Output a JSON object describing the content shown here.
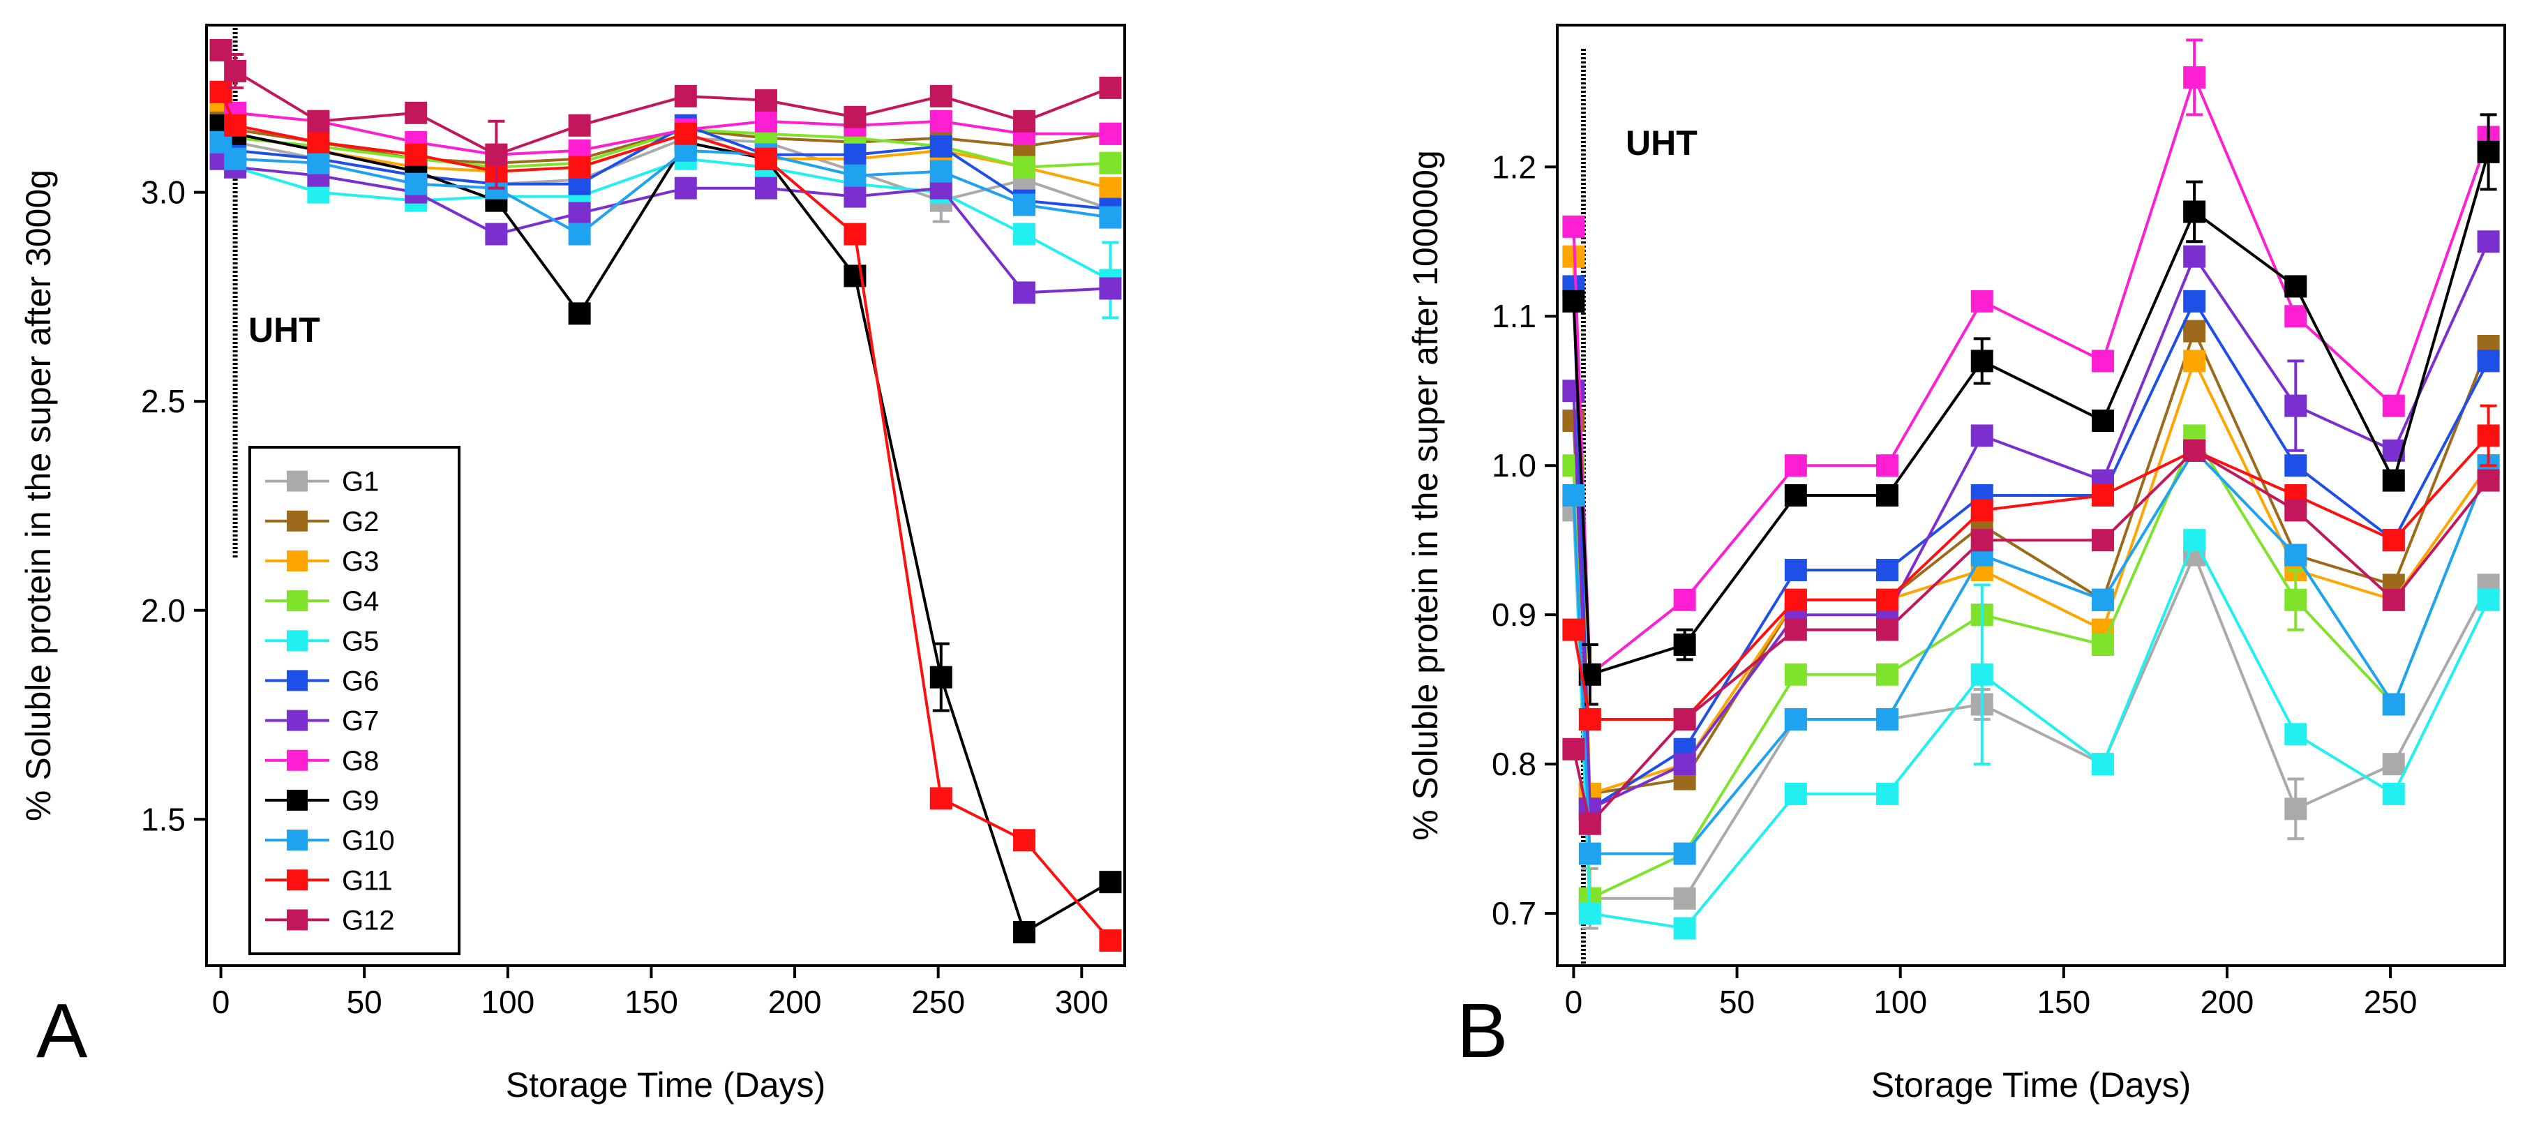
{
  "chart_data": [
    {
      "type": "line",
      "panel": "A",
      "title": "",
      "xlabel": "Storage Time (Days)",
      "ylabel": "% Soluble protein in the super after 3000g",
      "xlim": [
        -5,
        315
      ],
      "ylim": [
        1.15,
        3.4
      ],
      "xticks": [
        0,
        50,
        100,
        150,
        200,
        250,
        300
      ],
      "yticks": [
        1.5,
        2.0,
        2.5,
        3.0
      ],
      "annotation": "UHT",
      "uht_day": 5,
      "grid": false,
      "legend_position": "lower-left",
      "x": [
        0,
        5,
        34,
        68,
        96,
        125,
        162,
        190,
        221,
        251,
        280,
        310
      ],
      "series": [
        {
          "name": "G1",
          "color": "#aaaaaa",
          "values": [
            3.18,
            3.12,
            3.08,
            3.04,
            3.02,
            3.03,
            3.13,
            3.12,
            3.05,
            2.98,
            3.03,
            2.96
          ],
          "errors": [
            0,
            0,
            0,
            0,
            0,
            0,
            0,
            0,
            0,
            0.05,
            0,
            0
          ]
        },
        {
          "name": "G2",
          "color": "#9c6a1a",
          "values": [
            3.2,
            3.15,
            3.12,
            3.08,
            3.07,
            3.08,
            3.15,
            3.13,
            3.12,
            3.13,
            3.11,
            3.14
          ],
          "errors": [
            0,
            0,
            0,
            0,
            0,
            0,
            0,
            0,
            0,
            0,
            0,
            0
          ]
        },
        {
          "name": "G3",
          "color": "#ffa500",
          "values": [
            3.22,
            3.14,
            3.1,
            3.06,
            3.05,
            3.06,
            3.14,
            3.08,
            3.08,
            3.1,
            3.06,
            3.01
          ],
          "errors": [
            0,
            0,
            0,
            0,
            0,
            0,
            0,
            0,
            0,
            0,
            0,
            0
          ]
        },
        {
          "name": "G4",
          "color": "#7ee32a",
          "values": [
            3.16,
            3.13,
            3.11,
            3.08,
            3.06,
            3.07,
            3.15,
            3.14,
            3.13,
            3.11,
            3.06,
            3.07
          ],
          "errors": [
            0,
            0,
            0,
            0,
            0,
            0,
            0,
            0,
            0,
            0,
            0,
            0
          ]
        },
        {
          "name": "G5",
          "color": "#22f0f0",
          "values": [
            3.1,
            3.06,
            3.0,
            2.98,
            2.99,
            2.99,
            3.08,
            3.06,
            3.02,
            3.0,
            2.9,
            2.79
          ],
          "errors": [
            0,
            0,
            0,
            0,
            0,
            0,
            0,
            0,
            0,
            0,
            0,
            0.09
          ]
        },
        {
          "name": "G6",
          "color": "#1e4fe6",
          "values": [
            3.14,
            3.1,
            3.08,
            3.04,
            3.02,
            3.02,
            3.16,
            3.09,
            3.09,
            3.11,
            2.98,
            2.96
          ],
          "errors": [
            0,
            0,
            0,
            0,
            0,
            0,
            0,
            0,
            0,
            0,
            0,
            0
          ]
        },
        {
          "name": "G7",
          "color": "#7b2fcf",
          "values": [
            3.08,
            3.06,
            3.04,
            3.0,
            2.9,
            2.95,
            3.01,
            3.01,
            2.99,
            3.01,
            2.76,
            2.77
          ],
          "errors": [
            0,
            0,
            0,
            0,
            0,
            0,
            0,
            0,
            0,
            0,
            0,
            0
          ]
        },
        {
          "name": "G8",
          "color": "#ff1fd2",
          "values": [
            3.24,
            3.19,
            3.17,
            3.12,
            3.09,
            3.1,
            3.15,
            3.17,
            3.16,
            3.17,
            3.14,
            3.14
          ],
          "errors": [
            0,
            0,
            0,
            0,
            0,
            0,
            0,
            0,
            0,
            0,
            0,
            0
          ]
        },
        {
          "name": "G9",
          "color": "#000000",
          "values": [
            3.16,
            3.14,
            3.1,
            3.05,
            2.98,
            2.71,
            3.12,
            3.08,
            2.8,
            1.84,
            1.23,
            1.35
          ],
          "errors": [
            0,
            0,
            0,
            0,
            0,
            0,
            0,
            0,
            0,
            0.08,
            0,
            0
          ]
        },
        {
          "name": "G10",
          "color": "#1fa2f0",
          "values": [
            3.12,
            3.08,
            3.07,
            3.02,
            3.01,
            2.9,
            3.1,
            3.09,
            3.04,
            3.05,
            2.97,
            2.94
          ],
          "errors": [
            0,
            0,
            0,
            0,
            0,
            0,
            0,
            0,
            0,
            0,
            0,
            0
          ]
        },
        {
          "name": "G11",
          "color": "#ff1010",
          "values": [
            3.24,
            3.16,
            3.12,
            3.09,
            3.05,
            3.06,
            3.14,
            3.08,
            2.9,
            1.55,
            1.45,
            1.21
          ],
          "errors": [
            0,
            0,
            0,
            0,
            0,
            0,
            0,
            0,
            0,
            0,
            0,
            0
          ]
        },
        {
          "name": "G12",
          "color": "#c2185b",
          "values": [
            3.34,
            3.29,
            3.17,
            3.19,
            3.09,
            3.16,
            3.23,
            3.22,
            3.18,
            3.23,
            3.17,
            3.25
          ],
          "errors": [
            0,
            0.04,
            0,
            0,
            0.08,
            0,
            0,
            0,
            0,
            0,
            0,
            0
          ]
        }
      ]
    },
    {
      "type": "line",
      "panel": "B",
      "title": "",
      "xlabel": "Storage Time (Days)",
      "ylabel": "% Soluble protein in the super after 100000g",
      "xlim": [
        -5,
        285
      ],
      "ylim": [
        0.665,
        1.295
      ],
      "xticks": [
        0,
        50,
        100,
        150,
        200,
        250
      ],
      "yticks": [
        0.7,
        0.8,
        0.9,
        1.0,
        1.1,
        1.2
      ],
      "annotation": "UHT",
      "uht_day": 3,
      "grid": false,
      "legend_position": "none",
      "x": [
        0,
        5,
        34,
        68,
        96,
        125,
        162,
        190,
        221,
        251,
        280
      ],
      "series": [
        {
          "name": "G1",
          "color": "#aaaaaa",
          "values": [
            0.97,
            0.71,
            0.71,
            0.83,
            0.83,
            0.84,
            0.8,
            0.94,
            0.77,
            0.8,
            0.92
          ],
          "errors": [
            0,
            0.02,
            0,
            0,
            0,
            0.01,
            0,
            0,
            0.02,
            0,
            0
          ]
        },
        {
          "name": "G2",
          "color": "#9c6a1a",
          "values": [
            1.03,
            0.78,
            0.79,
            0.91,
            0.91,
            0.96,
            0.91,
            1.09,
            0.94,
            0.92,
            1.08
          ],
          "errors": [
            0,
            0,
            0,
            0,
            0,
            0,
            0,
            0,
            0,
            0,
            0
          ]
        },
        {
          "name": "G3",
          "color": "#ffa500",
          "values": [
            1.14,
            0.78,
            0.8,
            0.91,
            0.91,
            0.93,
            0.89,
            1.07,
            0.93,
            0.91,
            1.0
          ],
          "errors": [
            0,
            0,
            0,
            0,
            0,
            0,
            0,
            0,
            0,
            0,
            0
          ]
        },
        {
          "name": "G4",
          "color": "#7ee32a",
          "values": [
            1.0,
            0.71,
            0.74,
            0.86,
            0.86,
            0.9,
            0.88,
            1.02,
            0.91,
            0.84,
            1.0
          ],
          "errors": [
            0,
            0,
            0,
            0,
            0,
            0,
            0,
            0,
            0.02,
            0,
            0
          ]
        },
        {
          "name": "G5",
          "color": "#22f0f0",
          "values": [
            0.98,
            0.7,
            0.69,
            0.78,
            0.78,
            0.86,
            0.8,
            0.95,
            0.82,
            0.78,
            0.91
          ],
          "errors": [
            0,
            0,
            0,
            0,
            0,
            0.06,
            0,
            0,
            0,
            0,
            0
          ]
        },
        {
          "name": "G6",
          "color": "#1e4fe6",
          "values": [
            1.12,
            0.77,
            0.81,
            0.93,
            0.93,
            0.98,
            0.98,
            1.11,
            1.0,
            0.95,
            1.07
          ],
          "errors": [
            0,
            0,
            0,
            0,
            0,
            0,
            0,
            0,
            0,
            0,
            0
          ]
        },
        {
          "name": "G7",
          "color": "#7b2fcf",
          "values": [
            1.05,
            0.77,
            0.8,
            0.9,
            0.9,
            1.02,
            0.99,
            1.14,
            1.04,
            1.01,
            1.15
          ],
          "errors": [
            0,
            0,
            0,
            0,
            0,
            0,
            0,
            0,
            0.03,
            0,
            0
          ]
        },
        {
          "name": "G8",
          "color": "#ff1fd2",
          "values": [
            1.16,
            0.86,
            0.91,
            1.0,
            1.0,
            1.11,
            1.07,
            1.26,
            1.1,
            1.04,
            1.22
          ],
          "errors": [
            0,
            0,
            0,
            0,
            0,
            0,
            0,
            0.025,
            0,
            0,
            0
          ]
        },
        {
          "name": "G9",
          "color": "#000000",
          "values": [
            1.11,
            0.86,
            0.88,
            0.98,
            0.98,
            1.07,
            1.03,
            1.17,
            1.12,
            0.99,
            1.21
          ],
          "errors": [
            0,
            0.02,
            0.01,
            0,
            0,
            0.015,
            0,
            0.02,
            0,
            0,
            0.025
          ]
        },
        {
          "name": "G10",
          "color": "#1fa2f0",
          "values": [
            0.98,
            0.74,
            0.74,
            0.83,
            0.83,
            0.94,
            0.91,
            1.01,
            0.94,
            0.84,
            1.0
          ],
          "errors": [
            0,
            0,
            0,
            0,
            0,
            0,
            0,
            0,
            0,
            0,
            0
          ]
        },
        {
          "name": "G11",
          "color": "#ff1010",
          "values": [
            0.89,
            0.83,
            0.83,
            0.91,
            0.91,
            0.97,
            0.98,
            1.01,
            0.98,
            0.95,
            1.02
          ],
          "errors": [
            0,
            0,
            0,
            0,
            0,
            0,
            0,
            0,
            0,
            0,
            0.02
          ]
        },
        {
          "name": "G12",
          "color": "#c2185b",
          "values": [
            0.81,
            0.76,
            0.83,
            0.89,
            0.89,
            0.95,
            0.95,
            1.01,
            0.97,
            0.91,
            0.99
          ],
          "errors": [
            0,
            0,
            0,
            0,
            0,
            0,
            0,
            0,
            0,
            0,
            0
          ]
        }
      ]
    }
  ]
}
